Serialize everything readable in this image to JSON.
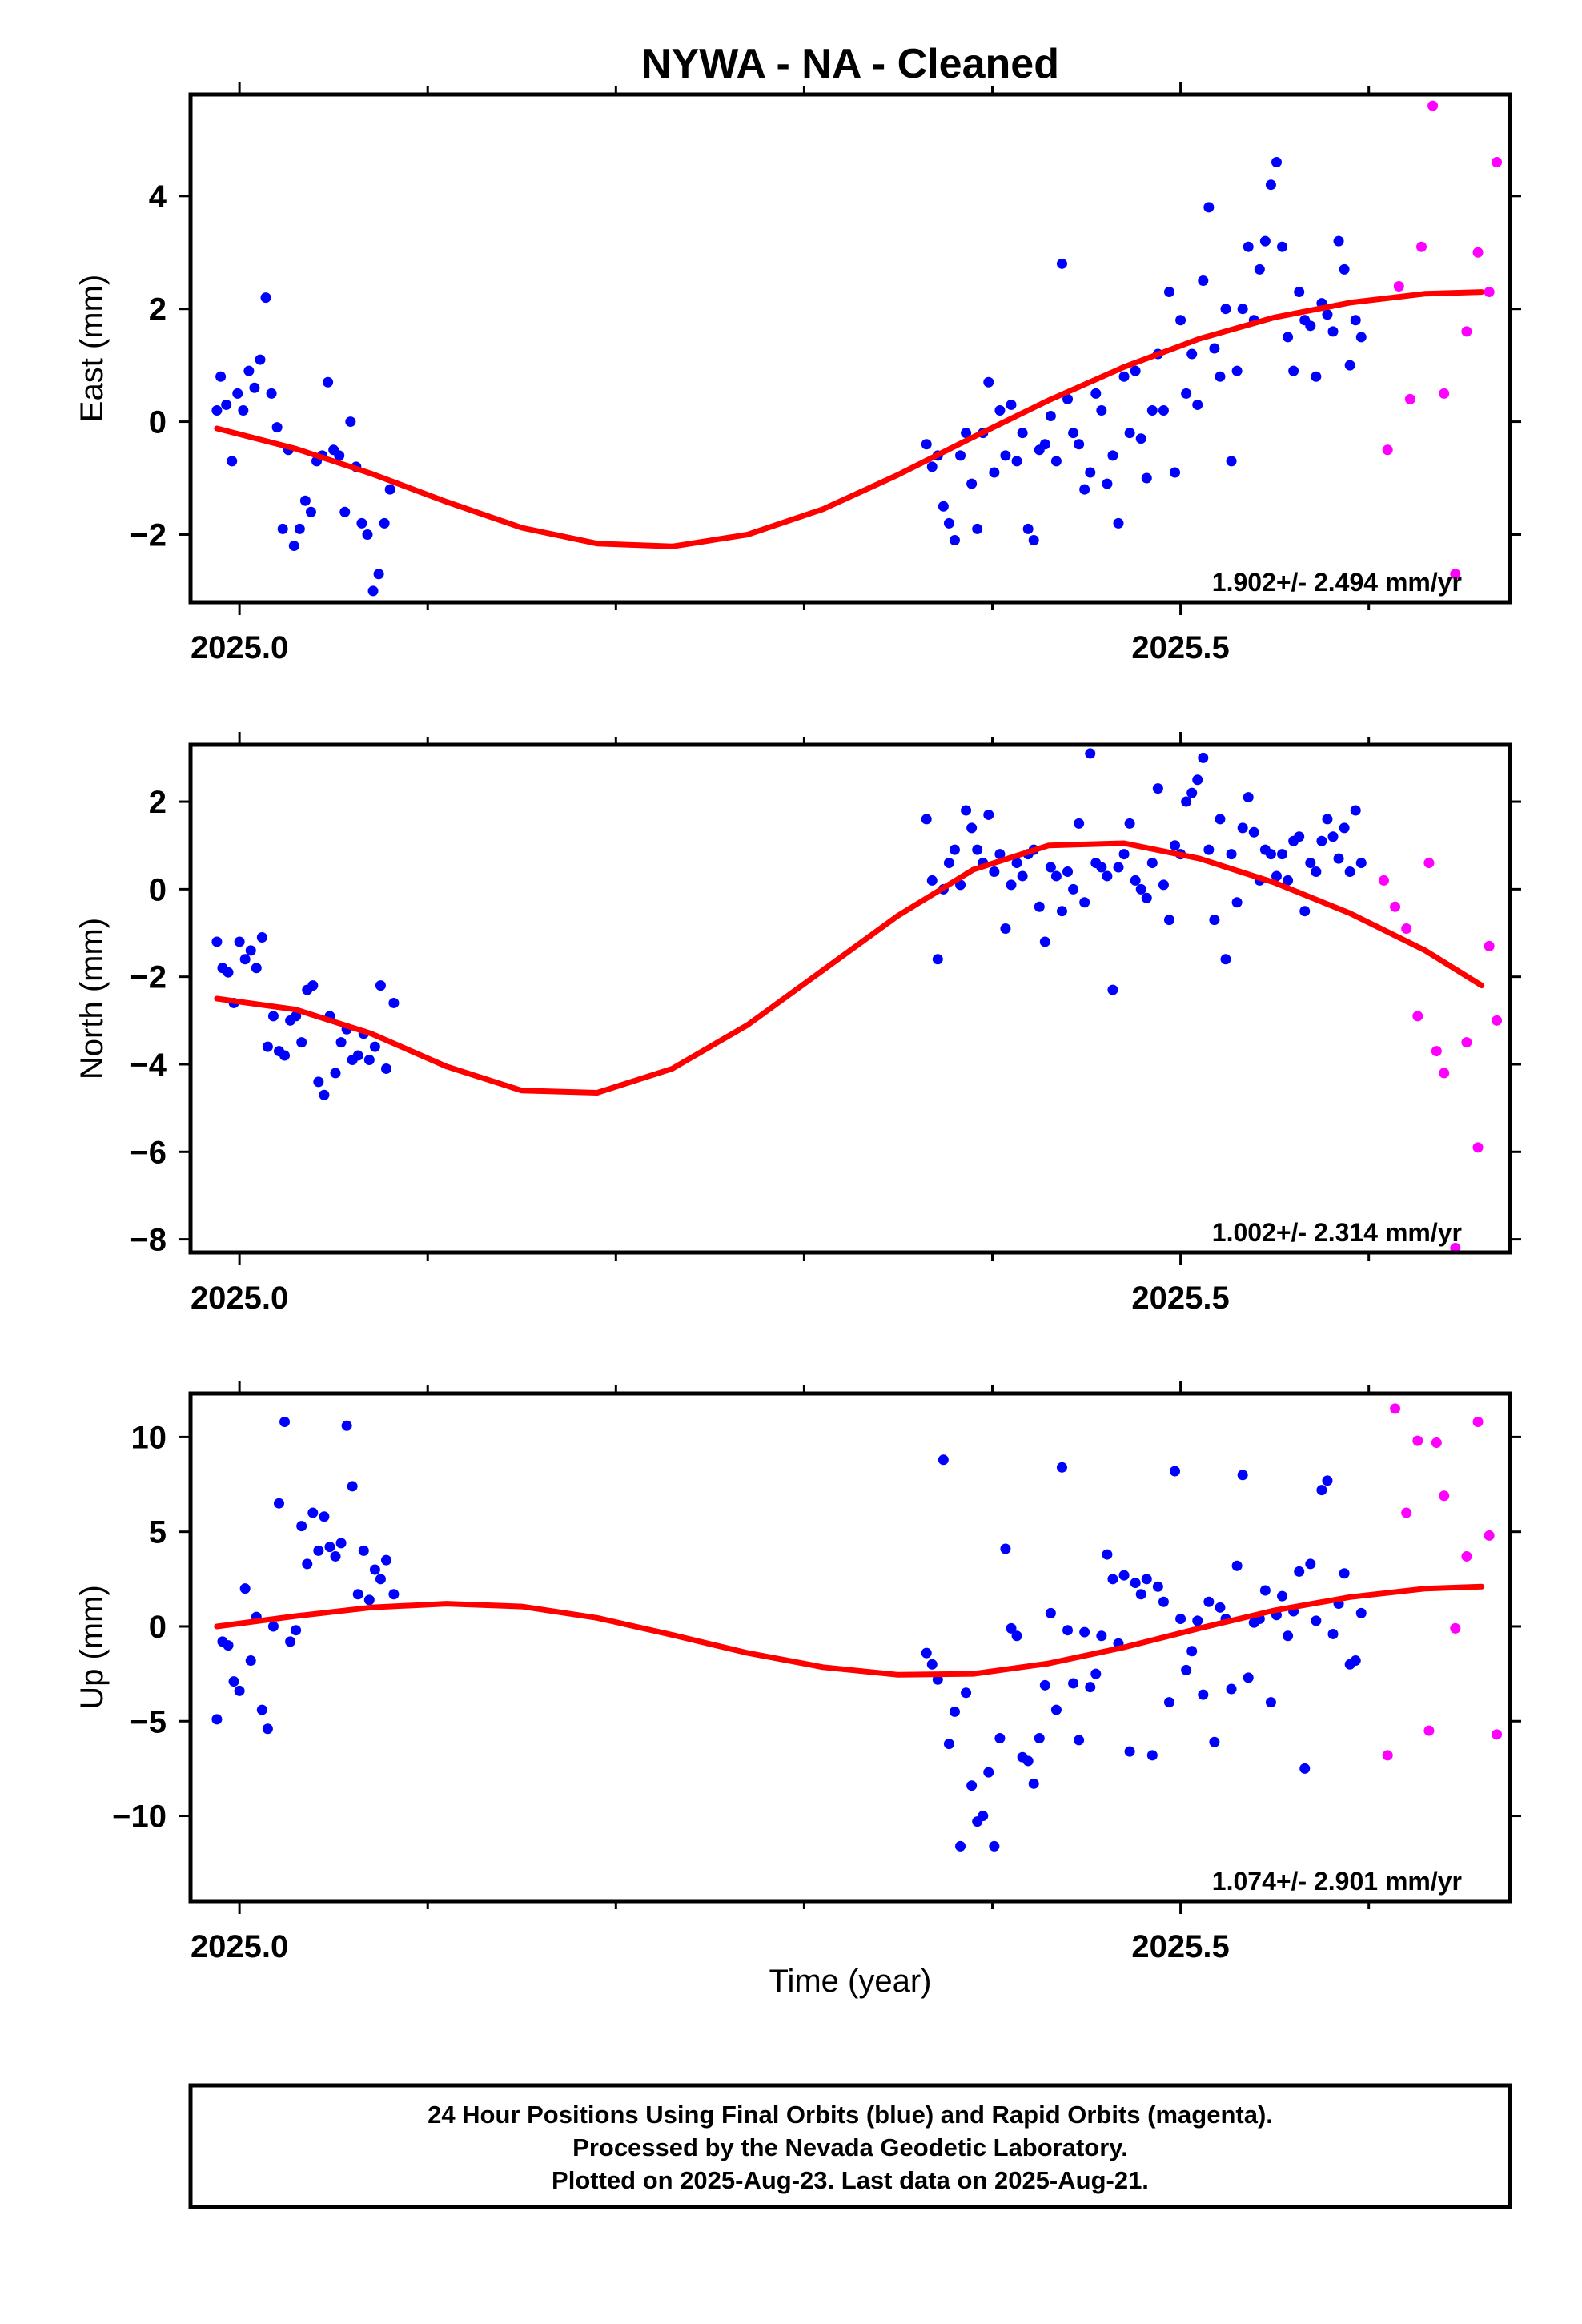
{
  "figure_title": "NYWA  - NA - Cleaned",
  "footer": {
    "line1": "24 Hour Positions Using Final Orbits (blue) and Rapid Orbits (magenta).",
    "line2": "Processed by the Nevada Geodetic Laboratory.",
    "line3": "Plotted on 2025-Aug-23. Last data on 2025-Aug-21."
  },
  "colors": {
    "final": "#0000ff",
    "rapid": "#ff00ff",
    "model": "#ff0000",
    "frame": "#000000"
  },
  "chart_data": [
    {
      "type": "scatter",
      "ylabel": "East (mm)",
      "xlabel": "",
      "rate_label": "1.902+/- 2.494 mm/yr",
      "xlim": [
        2024.974,
        2025.675
      ],
      "ylim": [
        -3.2,
        5.8
      ],
      "x_ticks": [
        2025.0,
        2025.5
      ],
      "x_tick_labels": [
        "2025.0",
        "2025.5"
      ],
      "x_minor_ticks": [
        2025.1,
        2025.2,
        2025.3,
        2025.4,
        2025.6
      ],
      "y_ticks": [
        -2,
        0,
        2,
        4
      ],
      "y_tick_labels": [
        "−2",
        "0",
        "2",
        "4"
      ],
      "model_x": [
        2024.988,
        2025.03,
        2025.07,
        2025.11,
        2025.15,
        2025.19,
        2025.23,
        2025.27,
        2025.31,
        2025.35,
        2025.39,
        2025.43,
        2025.47,
        2025.51,
        2025.55,
        2025.59,
        2025.63,
        2025.66
      ],
      "model_y": [
        -0.12,
        -0.48,
        -0.92,
        -1.42,
        -1.88,
        -2.16,
        -2.21,
        -2.0,
        -1.55,
        -0.94,
        -0.27,
        0.38,
        0.97,
        1.47,
        1.85,
        2.11,
        2.27,
        2.3
      ],
      "final": {
        "x": [
          2024.988,
          2024.99,
          2024.993,
          2024.996,
          2024.999,
          2025.002,
          2025.005,
          2025.008,
          2025.011,
          2025.014,
          2025.017,
          2025.02,
          2025.023,
          2025.026,
          2025.029,
          2025.032,
          2025.035,
          2025.038,
          2025.041,
          2025.044,
          2025.047,
          2025.05,
          2025.053,
          2025.056,
          2025.059,
          2025.062,
          2025.065,
          2025.068,
          2025.071,
          2025.074,
          2025.077,
          2025.08,
          2025.365,
          2025.368,
          2025.371,
          2025.374,
          2025.377,
          2025.38,
          2025.383,
          2025.386,
          2025.389,
          2025.392,
          2025.395,
          2025.398,
          2025.401,
          2025.404,
          2025.407,
          2025.41,
          2025.413,
          2025.416,
          2025.419,
          2025.422,
          2025.425,
          2025.428,
          2025.431,
          2025.434,
          2025.437,
          2025.44,
          2025.443,
          2025.446,
          2025.449,
          2025.452,
          2025.455,
          2025.458,
          2025.461,
          2025.464,
          2025.467,
          2025.47,
          2025.473,
          2025.476,
          2025.479,
          2025.482,
          2025.485,
          2025.488,
          2025.491,
          2025.494,
          2025.497,
          2025.5,
          2025.503,
          2025.506,
          2025.509,
          2025.512,
          2025.515,
          2025.518,
          2025.521,
          2025.524,
          2025.527,
          2025.53,
          2025.533,
          2025.536,
          2025.539,
          2025.542,
          2025.545,
          2025.548,
          2025.551,
          2025.554,
          2025.557,
          2025.56,
          2025.563,
          2025.566,
          2025.569,
          2025.572,
          2025.575,
          2025.578,
          2025.581,
          2025.584,
          2025.587,
          2025.59,
          2025.593,
          2025.596
        ],
        "y": [
          0.2,
          0.8,
          0.3,
          -0.7,
          0.5,
          0.2,
          0.9,
          0.6,
          1.1,
          2.2,
          0.5,
          -0.1,
          -1.9,
          -0.5,
          -2.2,
          -1.9,
          -1.4,
          -1.6,
          -0.7,
          -0.6,
          0.7,
          -0.5,
          -0.6,
          -1.6,
          0.0,
          -0.8,
          -1.8,
          -2.0,
          -3.0,
          -2.7,
          -1.8,
          -1.2,
          -0.4,
          -0.8,
          -0.6,
          -1.5,
          -1.8,
          -2.1,
          -0.6,
          -0.2,
          -1.1,
          -1.9,
          -0.2,
          0.7,
          -0.9,
          0.2,
          -0.6,
          0.3,
          -0.7,
          -0.2,
          -1.9,
          -2.1,
          -0.5,
          -0.4,
          0.1,
          -0.7,
          2.8,
          0.4,
          -0.2,
          -0.4,
          -1.2,
          -0.9,
          0.5,
          0.2,
          -1.1,
          -0.6,
          -1.8,
          0.8,
          -0.2,
          0.9,
          -0.3,
          -1.0,
          0.2,
          1.2,
          0.2,
          2.3,
          -0.9,
          1.8,
          0.5,
          1.2,
          0.3,
          2.5,
          3.8,
          1.3,
          0.8,
          2.0,
          -0.7,
          0.9,
          2.0,
          3.1,
          1.8,
          2.7,
          3.2,
          4.2,
          4.6,
          3.1,
          1.5,
          0.9,
          2.3,
          1.8,
          1.7,
          0.8,
          2.1,
          1.9,
          1.6,
          3.2,
          2.7,
          1.0,
          1.8,
          1.5
        ],
        "note": "approx"
      },
      "rapid": {
        "x": [
          2025.61,
          2025.616,
          2025.622,
          2025.628,
          2025.634,
          2025.64,
          2025.646,
          2025.652,
          2025.658,
          2025.664,
          2025.668
        ],
        "y": [
          -0.5,
          2.4,
          0.4,
          3.1,
          5.6,
          0.5,
          -2.7,
          1.6,
          3.0,
          2.3,
          4.6
        ]
      }
    },
    {
      "type": "scatter",
      "ylabel": "North (mm)",
      "xlabel": "",
      "rate_label": "1.002+/- 2.314 mm/yr",
      "xlim": [
        2024.974,
        2025.675
      ],
      "ylim": [
        -8.3,
        3.3
      ],
      "x_ticks": [
        2025.0,
        2025.5
      ],
      "x_tick_labels": [
        "2025.0",
        "2025.5"
      ],
      "x_minor_ticks": [
        2025.1,
        2025.2,
        2025.3,
        2025.4,
        2025.6
      ],
      "y_ticks": [
        -8,
        -6,
        -4,
        -2,
        0,
        2
      ],
      "y_tick_labels": [
        "−8",
        "−6",
        "−4",
        "−2",
        "0",
        "2"
      ],
      "model_x": [
        2024.988,
        2025.03,
        2025.07,
        2025.11,
        2025.15,
        2025.19,
        2025.23,
        2025.27,
        2025.31,
        2025.35,
        2025.39,
        2025.43,
        2025.47,
        2025.51,
        2025.55,
        2025.59,
        2025.63,
        2025.66
      ],
      "model_y": [
        -2.5,
        -2.75,
        -3.3,
        -4.05,
        -4.6,
        -4.65,
        -4.1,
        -3.1,
        -1.85,
        -0.6,
        0.45,
        1.0,
        1.05,
        0.7,
        0.15,
        -0.55,
        -1.4,
        -2.2
      ],
      "final": {
        "x": [
          2024.988,
          2024.991,
          2024.994,
          2024.997,
          2025.0,
          2025.003,
          2025.006,
          2025.009,
          2025.012,
          2025.015,
          2025.018,
          2025.021,
          2025.024,
          2025.027,
          2025.03,
          2025.033,
          2025.036,
          2025.039,
          2025.042,
          2025.045,
          2025.048,
          2025.051,
          2025.054,
          2025.057,
          2025.06,
          2025.063,
          2025.066,
          2025.069,
          2025.072,
          2025.075,
          2025.078,
          2025.082,
          2025.365,
          2025.368,
          2025.371,
          2025.374,
          2025.377,
          2025.38,
          2025.383,
          2025.386,
          2025.389,
          2025.392,
          2025.395,
          2025.398,
          2025.401,
          2025.404,
          2025.407,
          2025.41,
          2025.413,
          2025.416,
          2025.419,
          2025.422,
          2025.425,
          2025.428,
          2025.431,
          2025.434,
          2025.437,
          2025.44,
          2025.443,
          2025.446,
          2025.449,
          2025.452,
          2025.455,
          2025.458,
          2025.461,
          2025.464,
          2025.467,
          2025.47,
          2025.473,
          2025.476,
          2025.479,
          2025.482,
          2025.485,
          2025.488,
          2025.491,
          2025.494,
          2025.497,
          2025.5,
          2025.503,
          2025.506,
          2025.509,
          2025.512,
          2025.515,
          2025.518,
          2025.521,
          2025.524,
          2025.527,
          2025.53,
          2025.533,
          2025.536,
          2025.539,
          2025.542,
          2025.545,
          2025.548,
          2025.551,
          2025.554,
          2025.557,
          2025.56,
          2025.563,
          2025.566,
          2025.569,
          2025.572,
          2025.575,
          2025.578,
          2025.581,
          2025.584,
          2025.587,
          2025.59,
          2025.593,
          2025.596
        ],
        "y": [
          -1.2,
          -1.8,
          -1.9,
          -2.6,
          -1.2,
          -1.6,
          -1.4,
          -1.8,
          -1.1,
          -3.6,
          -2.9,
          -3.7,
          -3.8,
          -3.0,
          -2.9,
          -3.5,
          -2.3,
          -2.2,
          -4.4,
          -4.7,
          -2.9,
          -4.2,
          -3.5,
          -3.2,
          -3.9,
          -3.8,
          -3.3,
          -3.9,
          -3.6,
          -2.2,
          -4.1,
          -2.6,
          1.6,
          0.2,
          -1.6,
          0.0,
          0.6,
          0.9,
          0.1,
          1.8,
          1.4,
          0.9,
          0.6,
          1.7,
          0.4,
          0.8,
          -0.9,
          0.1,
          0.6,
          0.3,
          0.8,
          0.9,
          -0.4,
          -1.2,
          0.5,
          0.3,
          -0.5,
          0.4,
          0.0,
          1.5,
          -0.3,
          3.1,
          0.6,
          0.5,
          0.3,
          -2.3,
          0.5,
          0.8,
          1.5,
          0.2,
          0.0,
          -0.2,
          0.6,
          2.3,
          0.1,
          -0.7,
          1.0,
          0.8,
          2.0,
          2.2,
          2.5,
          3.0,
          0.9,
          -0.7,
          1.6,
          -1.6,
          0.8,
          -0.3,
          1.4,
          2.1,
          1.3,
          0.2,
          0.9,
          0.8,
          0.3,
          0.8,
          0.2,
          1.1,
          1.2,
          -0.5,
          0.6,
          0.4,
          1.1,
          1.6,
          1.2,
          0.7,
          1.4,
          0.4,
          1.8,
          0.6
        ],
        "note": "approx"
      },
      "rapid": {
        "x": [
          2025.608,
          2025.614,
          2025.62,
          2025.626,
          2025.632,
          2025.636,
          2025.64,
          2025.646,
          2025.652,
          2025.658,
          2025.664,
          2025.668
        ],
        "y": [
          0.2,
          -0.4,
          -0.9,
          -2.9,
          0.6,
          -3.7,
          -4.2,
          -8.2,
          -3.5,
          -5.9,
          -1.3,
          -3.0
        ]
      }
    },
    {
      "type": "scatter",
      "ylabel": "Up (mm)",
      "xlabel": "Time (year)",
      "rate_label": "1.074+/- 2.901 mm/yr",
      "xlim": [
        2024.974,
        2025.675
      ],
      "ylim": [
        -14.5,
        12.3
      ],
      "x_ticks": [
        2025.0,
        2025.5
      ],
      "x_tick_labels": [
        "2025.0",
        "2025.5"
      ],
      "x_minor_ticks": [
        2025.1,
        2025.2,
        2025.3,
        2025.4,
        2025.6
      ],
      "y_ticks": [
        -10,
        -5,
        0,
        5,
        10
      ],
      "y_tick_labels": [
        "−10",
        "−5",
        "0",
        "5",
        "10"
      ],
      "model_x": [
        2024.988,
        2025.03,
        2025.07,
        2025.11,
        2025.15,
        2025.19,
        2025.23,
        2025.27,
        2025.31,
        2025.35,
        2025.39,
        2025.43,
        2025.47,
        2025.51,
        2025.55,
        2025.59,
        2025.63,
        2025.66
      ],
      "model_y": [
        0.0,
        0.55,
        1.0,
        1.2,
        1.05,
        0.45,
        -0.45,
        -1.4,
        -2.15,
        -2.55,
        -2.5,
        -1.95,
        -1.1,
        -0.1,
        0.85,
        1.55,
        2.0,
        2.1
      ],
      "final": {
        "x": [
          2024.988,
          2024.991,
          2024.994,
          2024.997,
          2025.0,
          2025.003,
          2025.006,
          2025.009,
          2025.012,
          2025.015,
          2025.018,
          2025.021,
          2025.024,
          2025.027,
          2025.03,
          2025.033,
          2025.036,
          2025.039,
          2025.042,
          2025.045,
          2025.048,
          2025.051,
          2025.054,
          2025.057,
          2025.06,
          2025.063,
          2025.066,
          2025.069,
          2025.072,
          2025.075,
          2025.078,
          2025.082,
          2025.365,
          2025.368,
          2025.371,
          2025.374,
          2025.377,
          2025.38,
          2025.383,
          2025.386,
          2025.389,
          2025.392,
          2025.395,
          2025.398,
          2025.401,
          2025.404,
          2025.407,
          2025.41,
          2025.413,
          2025.416,
          2025.419,
          2025.422,
          2025.425,
          2025.428,
          2025.431,
          2025.434,
          2025.437,
          2025.44,
          2025.443,
          2025.446,
          2025.449,
          2025.452,
          2025.455,
          2025.458,
          2025.461,
          2025.464,
          2025.467,
          2025.47,
          2025.473,
          2025.476,
          2025.479,
          2025.482,
          2025.485,
          2025.488,
          2025.491,
          2025.494,
          2025.497,
          2025.5,
          2025.503,
          2025.506,
          2025.509,
          2025.512,
          2025.515,
          2025.518,
          2025.521,
          2025.524,
          2025.527,
          2025.53,
          2025.533,
          2025.536,
          2025.539,
          2025.542,
          2025.545,
          2025.548,
          2025.551,
          2025.554,
          2025.557,
          2025.56,
          2025.563,
          2025.566,
          2025.569,
          2025.572,
          2025.575,
          2025.578,
          2025.581,
          2025.584,
          2025.587,
          2025.59,
          2025.593,
          2025.596
        ],
        "y": [
          -4.9,
          -0.8,
          -1.0,
          -2.9,
          -3.4,
          2.0,
          -1.8,
          0.5,
          -4.4,
          -5.4,
          0.0,
          6.5,
          10.8,
          -0.8,
          -0.2,
          5.3,
          3.3,
          6.0,
          4.0,
          5.8,
          4.2,
          3.7,
          4.4,
          10.6,
          7.4,
          1.7,
          4.0,
          1.4,
          3.0,
          2.5,
          3.5,
          1.7,
          -1.4,
          -2.0,
          -2.8,
          8.8,
          -6.2,
          -4.5,
          -11.6,
          -3.5,
          -8.4,
          -10.3,
          -10.0,
          -7.7,
          -11.6,
          -5.9,
          4.1,
          -0.1,
          -0.5,
          -6.9,
          -7.1,
          -8.3,
          -5.9,
          -3.1,
          0.7,
          -4.4,
          8.4,
          -0.2,
          -3.0,
          -6.0,
          -0.3,
          -3.2,
          -2.5,
          -0.5,
          3.8,
          2.5,
          -0.9,
          2.7,
          -6.6,
          2.3,
          1.7,
          2.5,
          -6.8,
          2.1,
          1.3,
          -4.0,
          8.2,
          0.4,
          -2.3,
          -1.3,
          0.3,
          -3.6,
          1.3,
          -6.1,
          1.0,
          0.4,
          -3.3,
          3.2,
          8.0,
          -2.7,
          0.2,
          0.4,
          1.9,
          -4.0,
          0.6,
          1.6,
          -0.5,
          0.8,
          2.9,
          -7.5,
          3.3,
          0.3,
          7.2,
          7.7,
          -0.4,
          1.2,
          2.8,
          -2.0,
          -1.8,
          0.7
        ],
        "note": "approx"
      },
      "rapid": {
        "x": [
          2025.61,
          2025.614,
          2025.62,
          2025.626,
          2025.632,
          2025.636,
          2025.64,
          2025.646,
          2025.652,
          2025.658,
          2025.664,
          2025.668
        ],
        "y": [
          -6.8,
          11.5,
          6.0,
          9.8,
          -5.5,
          9.7,
          6.9,
          -0.1,
          3.7,
          10.8,
          4.8,
          -5.7
        ]
      }
    }
  ]
}
